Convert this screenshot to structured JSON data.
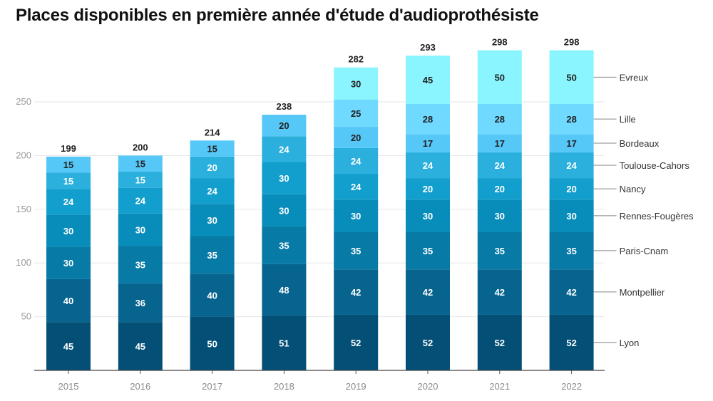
{
  "chart_data": {
    "type": "bar",
    "stacked": true,
    "title": "Places disponibles en première année d'étude d'audioprothésiste",
    "xlabel": "",
    "ylabel": "",
    "ylim": [
      0,
      250
    ],
    "yticks": [
      50,
      100,
      150,
      200,
      250
    ],
    "grid": true,
    "legend_placement": "right (inline labels)",
    "categories": [
      "2015",
      "2016",
      "2017",
      "2018",
      "2019",
      "2020",
      "2021",
      "2022"
    ],
    "totals": [
      199,
      200,
      214,
      238,
      282,
      293,
      298,
      298
    ],
    "series": [
      {
        "name": "Lyon",
        "color": "#034f76",
        "label_color": "#ffffff",
        "values": [
          45,
          45,
          50,
          51,
          52,
          52,
          52,
          52
        ]
      },
      {
        "name": "Montpellier",
        "color": "#06648f",
        "label_color": "#ffffff",
        "values": [
          40,
          36,
          40,
          48,
          42,
          42,
          42,
          42
        ]
      },
      {
        "name": "Paris-Cnam",
        "color": "#077aa6",
        "label_color": "#ffffff",
        "values": [
          30,
          35,
          35,
          35,
          35,
          35,
          35,
          35
        ]
      },
      {
        "name": "Rennes-Fougères",
        "color": "#088dba",
        "label_color": "#ffffff",
        "values": [
          30,
          30,
          30,
          30,
          30,
          30,
          30,
          30
        ]
      },
      {
        "name": "Nancy",
        "color": "#139fcd",
        "label_color": "#ffffff",
        "values": [
          24,
          24,
          24,
          30,
          24,
          20,
          20,
          20
        ]
      },
      {
        "name": "Toulouse-Cahors",
        "color": "#2bb0de",
        "label_color": "#ffffff",
        "values": [
          15,
          15,
          20,
          24,
          24,
          24,
          24,
          24
        ]
      },
      {
        "name": "Bordeaux",
        "color": "#56c8f8",
        "label_color": "#222222",
        "values": [
          15,
          15,
          15,
          20,
          20,
          17,
          17,
          17
        ]
      },
      {
        "name": "Lille",
        "color": "#6fd9ff",
        "label_color": "#222222",
        "values": [
          0,
          0,
          0,
          0,
          25,
          28,
          28,
          28
        ]
      },
      {
        "name": "Evreux",
        "color": "#8af5ff",
        "label_color": "#222222",
        "values": [
          0,
          0,
          0,
          0,
          30,
          45,
          50,
          50
        ]
      }
    ]
  }
}
